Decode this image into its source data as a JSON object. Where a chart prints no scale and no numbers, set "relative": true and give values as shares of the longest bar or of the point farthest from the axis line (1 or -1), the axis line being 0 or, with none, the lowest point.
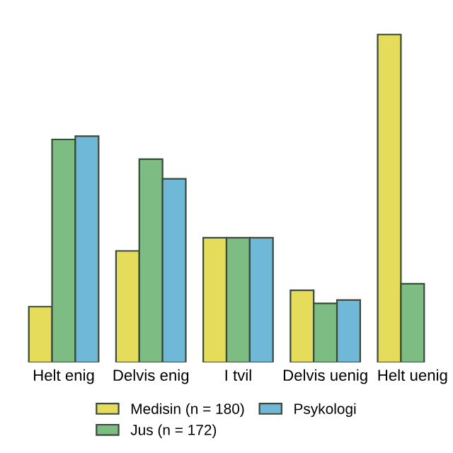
{
  "chart_data": {
    "type": "bar",
    "relative": true,
    "categories": [
      "Helt enig",
      "Delvis enig",
      "I tvil",
      "Delvis uenig",
      "Helt uenig"
    ],
    "series": [
      {
        "name": "Medisin (n = 180)",
        "color": "#e6dc5c",
        "values": [
          0.17,
          0.34,
          0.38,
          0.22,
          1.0
        ]
      },
      {
        "name": "Jus (n = 172)",
        "color": "#7dbd84",
        "values": [
          0.68,
          0.62,
          0.38,
          0.18,
          0.24
        ]
      },
      {
        "name": "Psykologi",
        "color": "#6fb8d8",
        "values": [
          0.69,
          0.56,
          0.38,
          0.19,
          null
        ]
      }
    ],
    "legend": "bottom",
    "grid": false
  }
}
